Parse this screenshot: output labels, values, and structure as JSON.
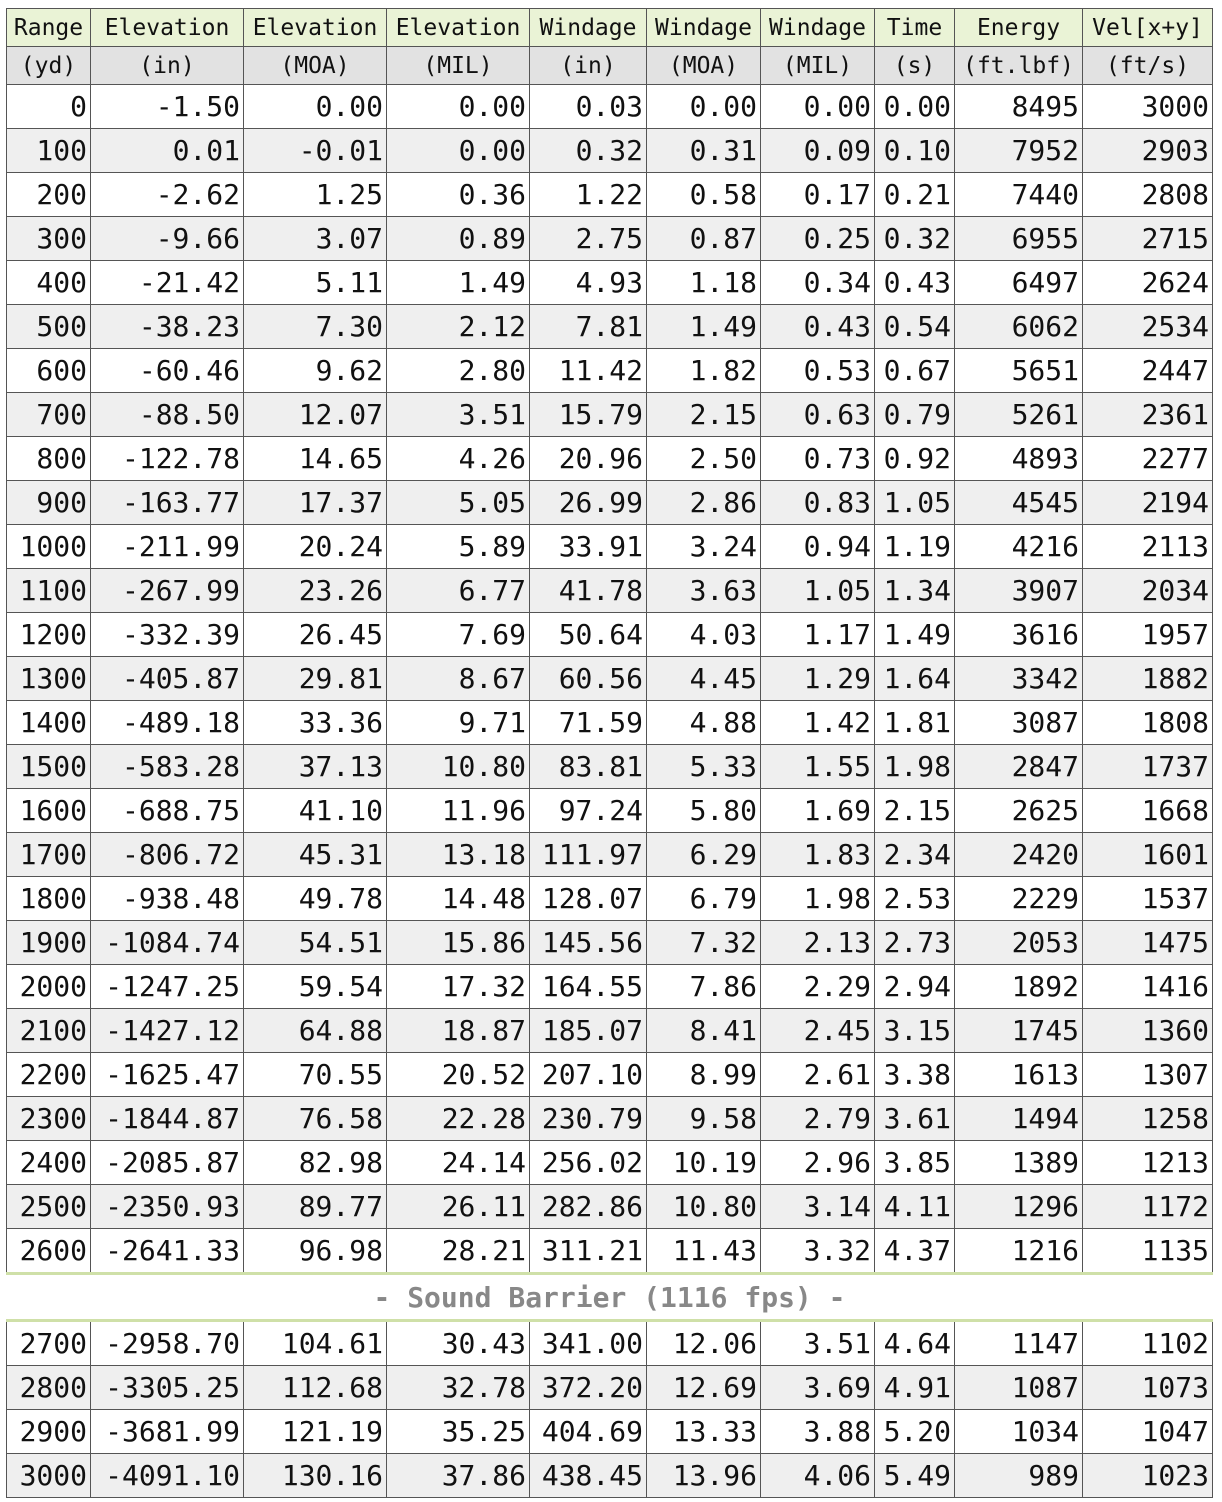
{
  "table": {
    "header": [
      [
        "Range",
        "Elevation",
        "Elevation",
        "Elevation",
        "Windage",
        "Windage",
        "Windage",
        "Time",
        "Energy",
        "Vel[x+y]"
      ],
      [
        "(yd)",
        "(in)",
        "(MOA)",
        "(MIL)",
        "(in)",
        "(MOA)",
        "(MIL)",
        "(s)",
        "(ft.lbf)",
        "(ft/s)"
      ]
    ],
    "rows": [
      [
        "0",
        "-1.50",
        "0.00",
        "0.00",
        "0.03",
        "0.00",
        "0.00",
        "0.00",
        "8495",
        "3000"
      ],
      [
        "100",
        "0.01",
        "-0.01",
        "0.00",
        "0.32",
        "0.31",
        "0.09",
        "0.10",
        "7952",
        "2903"
      ],
      [
        "200",
        "-2.62",
        "1.25",
        "0.36",
        "1.22",
        "0.58",
        "0.17",
        "0.21",
        "7440",
        "2808"
      ],
      [
        "300",
        "-9.66",
        "3.07",
        "0.89",
        "2.75",
        "0.87",
        "0.25",
        "0.32",
        "6955",
        "2715"
      ],
      [
        "400",
        "-21.42",
        "5.11",
        "1.49",
        "4.93",
        "1.18",
        "0.34",
        "0.43",
        "6497",
        "2624"
      ],
      [
        "500",
        "-38.23",
        "7.30",
        "2.12",
        "7.81",
        "1.49",
        "0.43",
        "0.54",
        "6062",
        "2534"
      ],
      [
        "600",
        "-60.46",
        "9.62",
        "2.80",
        "11.42",
        "1.82",
        "0.53",
        "0.67",
        "5651",
        "2447"
      ],
      [
        "700",
        "-88.50",
        "12.07",
        "3.51",
        "15.79",
        "2.15",
        "0.63",
        "0.79",
        "5261",
        "2361"
      ],
      [
        "800",
        "-122.78",
        "14.65",
        "4.26",
        "20.96",
        "2.50",
        "0.73",
        "0.92",
        "4893",
        "2277"
      ],
      [
        "900",
        "-163.77",
        "17.37",
        "5.05",
        "26.99",
        "2.86",
        "0.83",
        "1.05",
        "4545",
        "2194"
      ],
      [
        "1000",
        "-211.99",
        "20.24",
        "5.89",
        "33.91",
        "3.24",
        "0.94",
        "1.19",
        "4216",
        "2113"
      ],
      [
        "1100",
        "-267.99",
        "23.26",
        "6.77",
        "41.78",
        "3.63",
        "1.05",
        "1.34",
        "3907",
        "2034"
      ],
      [
        "1200",
        "-332.39",
        "26.45",
        "7.69",
        "50.64",
        "4.03",
        "1.17",
        "1.49",
        "3616",
        "1957"
      ],
      [
        "1300",
        "-405.87",
        "29.81",
        "8.67",
        "60.56",
        "4.45",
        "1.29",
        "1.64",
        "3342",
        "1882"
      ],
      [
        "1400",
        "-489.18",
        "33.36",
        "9.71",
        "71.59",
        "4.88",
        "1.42",
        "1.81",
        "3087",
        "1808"
      ],
      [
        "1500",
        "-583.28",
        "37.13",
        "10.80",
        "83.81",
        "5.33",
        "1.55",
        "1.98",
        "2847",
        "1737"
      ],
      [
        "1600",
        "-688.75",
        "41.10",
        "11.96",
        "97.24",
        "5.80",
        "1.69",
        "2.15",
        "2625",
        "1668"
      ],
      [
        "1700",
        "-806.72",
        "45.31",
        "13.18",
        "111.97",
        "6.29",
        "1.83",
        "2.34",
        "2420",
        "1601"
      ],
      [
        "1800",
        "-938.48",
        "49.78",
        "14.48",
        "128.07",
        "6.79",
        "1.98",
        "2.53",
        "2229",
        "1537"
      ],
      [
        "1900",
        "-1084.74",
        "54.51",
        "15.86",
        "145.56",
        "7.32",
        "2.13",
        "2.73",
        "2053",
        "1475"
      ],
      [
        "2000",
        "-1247.25",
        "59.54",
        "17.32",
        "164.55",
        "7.86",
        "2.29",
        "2.94",
        "1892",
        "1416"
      ],
      [
        "2100",
        "-1427.12",
        "64.88",
        "18.87",
        "185.07",
        "8.41",
        "2.45",
        "3.15",
        "1745",
        "1360"
      ],
      [
        "2200",
        "-1625.47",
        "70.55",
        "20.52",
        "207.10",
        "8.99",
        "2.61",
        "3.38",
        "1613",
        "1307"
      ],
      [
        "2300",
        "-1844.87",
        "76.58",
        "22.28",
        "230.79",
        "9.58",
        "2.79",
        "3.61",
        "1494",
        "1258"
      ],
      [
        "2400",
        "-2085.87",
        "82.98",
        "24.14",
        "256.02",
        "10.19",
        "2.96",
        "3.85",
        "1389",
        "1213"
      ],
      [
        "2500",
        "-2350.93",
        "89.77",
        "26.11",
        "282.86",
        "10.80",
        "3.14",
        "4.11",
        "1296",
        "1172"
      ],
      [
        "2600",
        "-2641.33",
        "96.98",
        "28.21",
        "311.21",
        "11.43",
        "3.32",
        "4.37",
        "1216",
        "1135"
      ]
    ],
    "separator": "- Sound Barrier (1116 fps) -",
    "rows_after": [
      [
        "2700",
        "-2958.70",
        "104.61",
        "30.43",
        "341.00",
        "12.06",
        "3.51",
        "4.64",
        "1147",
        "1102"
      ],
      [
        "2800",
        "-3305.25",
        "112.68",
        "32.78",
        "372.20",
        "12.69",
        "3.69",
        "4.91",
        "1087",
        "1073"
      ],
      [
        "2900",
        "-3681.99",
        "121.19",
        "35.25",
        "404.69",
        "13.33",
        "3.88",
        "5.20",
        "1034",
        "1047"
      ],
      [
        "3000",
        "-4091.10",
        "130.16",
        "37.86",
        "438.45",
        "13.96",
        "4.06",
        "5.49",
        "989",
        "1023"
      ]
    ]
  }
}
